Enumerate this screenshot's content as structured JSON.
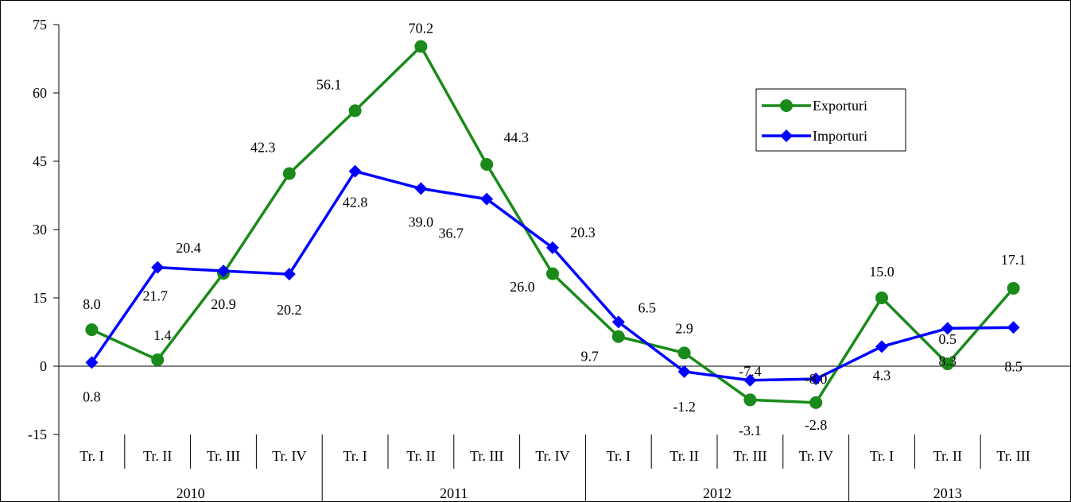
{
  "chart_data": {
    "type": "line",
    "title": "",
    "xlabel": "",
    "ylabel": "",
    "ylim": [
      -15,
      75
    ],
    "yticks": [
      -15,
      0,
      15,
      30,
      45,
      60,
      75
    ],
    "grid": false,
    "legend_position": "top-right",
    "categories": [
      "Tr. I",
      "Tr. II",
      "Tr. III",
      "Tr. IV",
      "Tr. I",
      "Tr. II",
      "Tr. III",
      "Tr. IV",
      "Tr. I",
      "Tr. II",
      "Tr. III",
      "Tr. IV",
      "Tr. I",
      "Tr. II",
      "Tr. III"
    ],
    "year_groups": [
      {
        "label": "2010",
        "count": 4
      },
      {
        "label": "2011",
        "count": 4
      },
      {
        "label": "2012",
        "count": 4
      },
      {
        "label": "2013",
        "count": 3
      }
    ],
    "series": [
      {
        "name": "Exporturi",
        "color": "#1a8a1a",
        "marker": "circle",
        "values": [
          8.0,
          1.4,
          20.4,
          42.3,
          56.1,
          70.2,
          44.3,
          20.3,
          6.5,
          2.9,
          -7.4,
          -8.0,
          15.0,
          0.5,
          17.1
        ],
        "labels": [
          "8.0",
          "1.4",
          "20.4",
          "42.3",
          "56.1",
          "70.2",
          "44.3",
          "20.3",
          "6.5",
          "2.9",
          "-7.4",
          "-8.0",
          "15.0",
          "0.5",
          "17.1"
        ]
      },
      {
        "name": "Importuri",
        "color": "#0000ff",
        "marker": "diamond",
        "values": [
          0.8,
          21.7,
          20.9,
          20.2,
          42.8,
          39.0,
          36.7,
          26.0,
          9.7,
          -1.2,
          -3.1,
          -2.8,
          4.3,
          8.3,
          8.5
        ],
        "labels": [
          "0.8",
          "21.7",
          "20.9",
          "20.2",
          "42.8",
          "39.0",
          "36.7",
          "26.0",
          "9.7",
          "-1.2",
          "-3.1",
          "-2.8",
          "4.3",
          "8.3",
          "8.5"
        ]
      }
    ]
  }
}
